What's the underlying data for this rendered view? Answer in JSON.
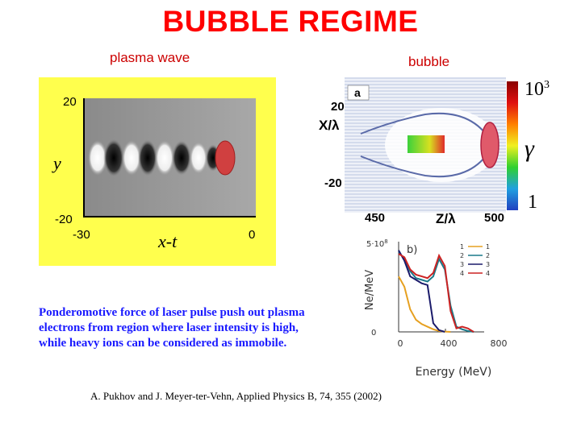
{
  "title": "BUBBLE REGIME",
  "captions": {
    "plasma_wave": "plasma wave",
    "bubble": "bubble"
  },
  "plasma_plot": {
    "y_ticks": [
      "20",
      "-20"
    ],
    "x_ticks": [
      "-30",
      "0"
    ],
    "y_label": "y",
    "x_label": "x-t"
  },
  "bubble_plot": {
    "panel_letter": "a",
    "y_label": "X/λ",
    "y_ticks": [
      "20",
      "-20"
    ],
    "x_label": "Z/λ",
    "x_ticks": [
      "450",
      "500"
    ],
    "colorbar_top": "10",
    "colorbar_top_exp": "3",
    "colorbar_bottom": "1",
    "colorbar_label": "γ"
  },
  "chart_data": {
    "type": "line",
    "panel_letter": "b)",
    "xlabel": "Energy (MeV)",
    "ylabel": "Ne/MeV",
    "x_ticks": [
      "0",
      "400",
      "800"
    ],
    "y_ticks": [
      "5·10",
      "0"
    ],
    "y_tick_exponent": "8",
    "xlim": [
      0,
      800
    ],
    "legend_position": "top-right",
    "series": [
      {
        "name": "1",
        "color": "#e6a020",
        "x": [
          0,
          40,
          80,
          120,
          160,
          200,
          240,
          280,
          320,
          360
        ],
        "y": [
          3.2,
          2.6,
          1.3,
          0.7,
          0.45,
          0.3,
          0.15,
          0.05,
          0.02,
          0
        ]
      },
      {
        "name": "2",
        "color": "#1a7a8a",
        "x": [
          0,
          40,
          80,
          120,
          160,
          200,
          240,
          280,
          320,
          360,
          400,
          440,
          480,
          520
        ],
        "y": [
          4.6,
          4.2,
          3.5,
          3.1,
          3.0,
          2.9,
          3.2,
          4.2,
          3.6,
          1.5,
          0.3,
          0.15,
          0.05,
          0
        ]
      },
      {
        "name": "3",
        "color": "#1a1a6a",
        "x": [
          0,
          40,
          80,
          120,
          160,
          200,
          240,
          280,
          320
        ],
        "y": [
          4.7,
          4.1,
          3.2,
          3.0,
          2.8,
          2.7,
          0.5,
          0.1,
          0
        ]
      },
      {
        "name": "4",
        "color": "#cc2222",
        "x": [
          0,
          40,
          80,
          120,
          160,
          200,
          240,
          280,
          320,
          360,
          400,
          440,
          480,
          520
        ],
        "y": [
          4.5,
          4.3,
          3.6,
          3.3,
          3.2,
          3.1,
          3.4,
          4.4,
          3.8,
          1.2,
          0.2,
          0.3,
          0.2,
          0
        ]
      }
    ]
  },
  "body_text": [
    "Ponderomotive force of laser pulse push out plasma",
    "electrons from region where laser intensity is high,",
    "while heavy ions can be considered as immobile."
  ],
  "citation": "A. Pukhov and J. Meyer-ter-Vehn, Applied Physics B, 74, 355 (2002)"
}
